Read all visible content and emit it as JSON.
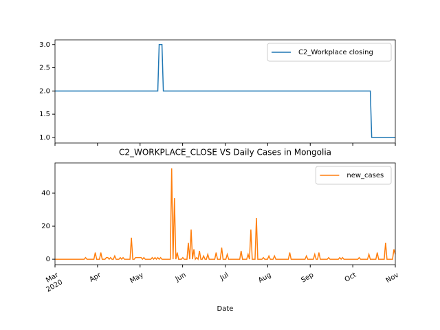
{
  "chart_data": [
    {
      "type": "line",
      "series": [
        {
          "name": "C2_Workplace closing",
          "color": "#1f77b4",
          "values": [
            2,
            2,
            2,
            2,
            2,
            2,
            2,
            2,
            2,
            2,
            2,
            2,
            2,
            2,
            2,
            2,
            2,
            2,
            2,
            2,
            2,
            2,
            2,
            2,
            2,
            2,
            2,
            2,
            2,
            2,
            2,
            2,
            2,
            2,
            2,
            2,
            2,
            2,
            2,
            2,
            2,
            2,
            2,
            2,
            2,
            2,
            2,
            2,
            2,
            2,
            2,
            2,
            2,
            2,
            2,
            2,
            2,
            2,
            2,
            2,
            2,
            2,
            2,
            2,
            2,
            2,
            2,
            2,
            2,
            2,
            2,
            2,
            2,
            2,
            2,
            3,
            3,
            3,
            2,
            2,
            2,
            2,
            2,
            2,
            2,
            2,
            2,
            2,
            2,
            2,
            2,
            2,
            2,
            2,
            2,
            2,
            2,
            2,
            2,
            2,
            2,
            2,
            2,
            2,
            2,
            2,
            2,
            2,
            2,
            2,
            2,
            2,
            2,
            2,
            2,
            2,
            2,
            2,
            2,
            2,
            2,
            2,
            2,
            2,
            2,
            2,
            2,
            2,
            2,
            2,
            2,
            2,
            2,
            2,
            2,
            2,
            2,
            2,
            2,
            2,
            2,
            2,
            2,
            2,
            2,
            2,
            2,
            2,
            2,
            2,
            2,
            2,
            2,
            2,
            2,
            2,
            2,
            2,
            2,
            2,
            2,
            2,
            2,
            2,
            2,
            2,
            2,
            2,
            2,
            2,
            2,
            2,
            2,
            2,
            2,
            2,
            2,
            2,
            2,
            2,
            2,
            2,
            2,
            2,
            2,
            2,
            2,
            2,
            2,
            2,
            2,
            2,
            2,
            2,
            2,
            2,
            2,
            2,
            2,
            2,
            2,
            2,
            2,
            2,
            2,
            2,
            2,
            2,
            2,
            2,
            2,
            2,
            2,
            2,
            2,
            2,
            2,
            2,
            2,
            2,
            2,
            2,
            2,
            2,
            2,
            2,
            2,
            2,
            1,
            1,
            1,
            1,
            1,
            1,
            1,
            1,
            1,
            1,
            1,
            1,
            1,
            1,
            1,
            1,
            1,
            1
          ]
        }
      ],
      "xlim": [
        "2020-03",
        "2020-11"
      ],
      "ylim": [
        0.88,
        3.1
      ],
      "yticks": [
        {
          "value": 1,
          "label": "1.0"
        },
        {
          "value": 1.5,
          "label": "1.5"
        },
        {
          "value": 2,
          "label": "2.0"
        },
        {
          "value": 2.5,
          "label": "2.5"
        },
        {
          "value": 3,
          "label": "3.0"
        }
      ],
      "legend": "upper right"
    },
    {
      "type": "line",
      "title": "C2_WORKPLACE_CLOSE VS Daily Cases in Mongolia",
      "xlabel": "Date",
      "series": [
        {
          "name": "new_cases",
          "color": "#ff7f0e",
          "values": [
            0,
            0,
            0,
            0,
            0,
            0,
            0,
            0,
            0,
            0,
            0,
            0,
            0,
            0,
            0,
            0,
            0,
            0,
            0,
            0,
            0,
            0,
            1,
            0,
            0,
            0,
            0,
            0,
            0,
            4,
            0,
            0,
            0,
            4,
            0,
            0,
            0,
            1,
            1,
            0,
            1,
            0,
            0,
            2,
            0,
            0,
            0,
            1,
            0,
            1,
            0,
            0,
            0,
            0,
            0,
            13,
            0,
            0,
            1,
            1,
            1,
            1,
            1,
            0,
            1,
            0,
            0,
            0,
            0,
            0,
            1,
            0,
            1,
            0,
            1,
            0,
            1,
            0,
            0,
            0,
            0,
            0,
            0,
            0,
            55,
            0,
            37,
            0,
            4,
            0,
            0,
            0,
            1,
            0,
            0,
            0,
            10,
            0,
            18,
            0,
            6,
            0,
            1,
            0,
            5,
            0,
            0,
            2,
            0,
            0,
            3,
            0,
            0,
            0,
            0,
            0,
            4,
            0,
            0,
            0,
            7,
            0,
            0,
            0,
            3,
            0,
            0,
            0,
            0,
            0,
            0,
            0,
            0,
            0,
            5,
            0,
            0,
            0,
            0,
            3,
            0,
            18,
            0,
            0,
            0,
            25,
            0,
            0,
            0,
            0,
            1,
            0,
            0,
            0,
            2,
            0,
            0,
            0,
            2,
            0,
            0,
            0,
            0,
            0,
            0,
            0,
            0,
            0,
            0,
            4,
            0,
            0,
            0,
            0,
            0,
            0,
            0,
            0,
            0,
            0,
            0,
            2,
            0,
            0,
            0,
            0,
            0,
            3,
            0,
            0,
            4,
            0,
            0,
            0,
            0,
            0,
            0,
            1,
            0,
            0,
            0,
            0,
            0,
            0,
            0,
            1,
            0,
            1,
            0,
            0,
            0,
            0,
            0,
            0,
            0,
            0,
            0,
            0,
            0,
            1,
            0,
            0,
            0,
            0,
            0,
            0,
            3,
            0,
            0,
            0,
            0,
            0,
            4,
            0,
            0,
            0,
            0,
            0,
            10,
            0,
            0,
            0,
            0,
            0,
            6,
            3
          ]
        }
      ],
      "xlim": [
        "2020-03",
        "2020-11"
      ],
      "xticks": [
        {
          "value": "2020-03",
          "label": "Mar\n2020"
        },
        {
          "value": "2020-04",
          "label": "Apr"
        },
        {
          "value": "2020-05",
          "label": "May"
        },
        {
          "value": "2020-06",
          "label": "Jun"
        },
        {
          "value": "2020-07",
          "label": "Jul"
        },
        {
          "value": "2020-08",
          "label": "Aug"
        },
        {
          "value": "2020-09",
          "label": "Sep"
        },
        {
          "value": "2020-10",
          "label": "Oct"
        },
        {
          "value": "2020-11",
          "label": "Nov"
        }
      ],
      "ylim": [
        -3.3,
        58.3
      ],
      "yticks": [
        0,
        20,
        40
      ],
      "legend": "upper right"
    }
  ]
}
